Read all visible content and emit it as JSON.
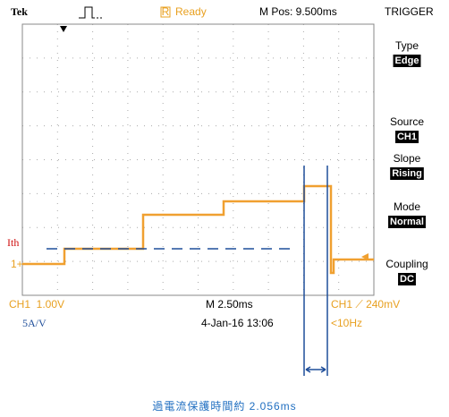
{
  "header": {
    "brand": "Tek",
    "status": "Ready",
    "status_flag": "R",
    "position": "M Pos: 9.500ms",
    "menu_title": "TRIGGER"
  },
  "menu": [
    {
      "label": "Type",
      "value": "Edge"
    },
    {
      "label": "Source",
      "value": "CH1"
    },
    {
      "label": "Slope",
      "value": "Rising"
    },
    {
      "label": "Mode",
      "value": "Normal"
    },
    {
      "label": "Coupling",
      "value": "DC"
    }
  ],
  "footer": {
    "channel_scale": "CH1  1.00V",
    "time_scale": "M 2.50ms",
    "trigger": "CH1 ⟋ 240mV",
    "date": "4-Jan-16 13:06",
    "frequency": "<10Hz"
  },
  "annotations": {
    "threshold": "Ith",
    "channel_marker": "1+",
    "probe": "5A/V",
    "caption": "過電流保護時間約 2.056ms"
  }
}
